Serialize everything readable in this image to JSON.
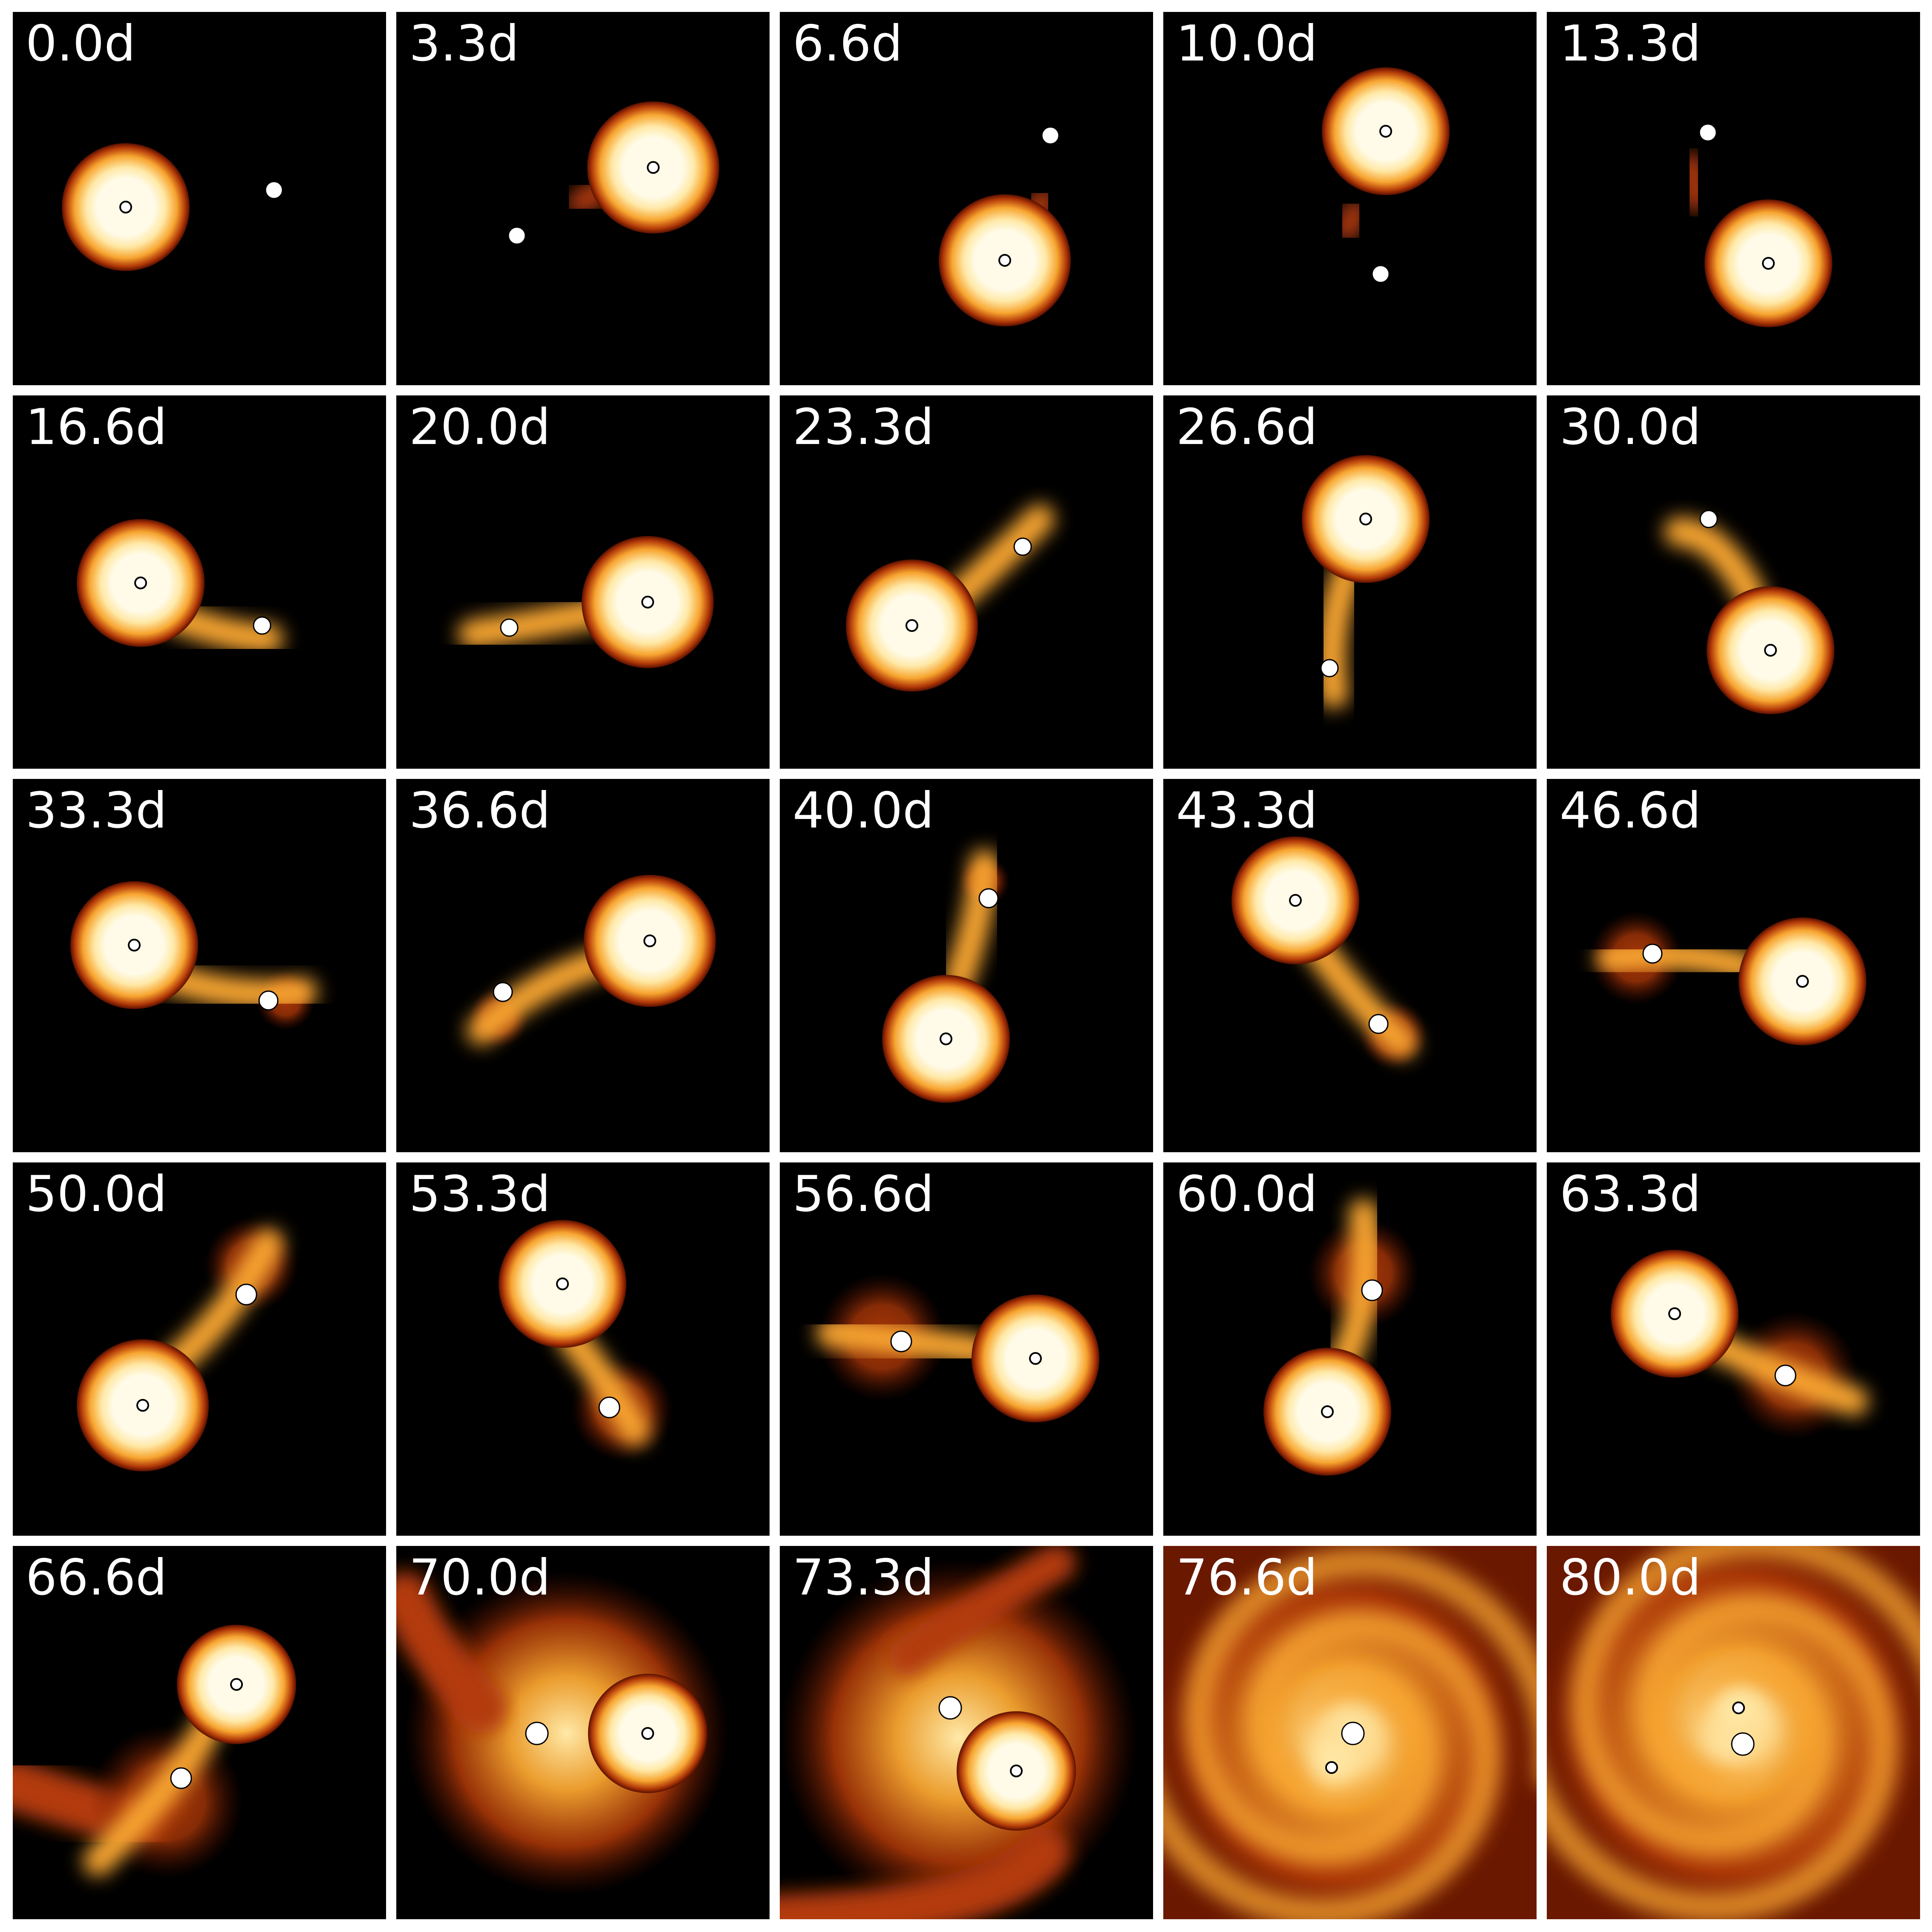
{
  "figure": {
    "panels": [
      {
        "label": "0.0d",
        "phase": "detached"
      },
      {
        "label": "3.3d",
        "phase": "detached"
      },
      {
        "label": "6.6d",
        "phase": "detached"
      },
      {
        "label": "10.0d",
        "phase": "detached"
      },
      {
        "label": "13.3d",
        "phase": "detached"
      },
      {
        "label": "16.6d",
        "phase": "mass-transfer"
      },
      {
        "label": "20.0d",
        "phase": "mass-transfer"
      },
      {
        "label": "23.3d",
        "phase": "mass-transfer"
      },
      {
        "label": "26.6d",
        "phase": "mass-transfer"
      },
      {
        "label": "30.0d",
        "phase": "mass-transfer"
      },
      {
        "label": "33.3d",
        "phase": "mass-transfer"
      },
      {
        "label": "36.6d",
        "phase": "mass-transfer"
      },
      {
        "label": "40.0d",
        "phase": "mass-transfer"
      },
      {
        "label": "43.3d",
        "phase": "mass-transfer"
      },
      {
        "label": "46.6d",
        "phase": "mass-transfer"
      },
      {
        "label": "50.0d",
        "phase": "mass-transfer"
      },
      {
        "label": "53.3d",
        "phase": "mass-transfer"
      },
      {
        "label": "56.6d",
        "phase": "mass-transfer"
      },
      {
        "label": "60.0d",
        "phase": "mass-transfer"
      },
      {
        "label": "63.3d",
        "phase": "mass-transfer"
      },
      {
        "label": "66.6d",
        "phase": "mass-transfer"
      },
      {
        "label": "70.0d",
        "phase": "common-envelope"
      },
      {
        "label": "73.3d",
        "phase": "common-envelope"
      },
      {
        "label": "76.6d",
        "phase": "spiral"
      },
      {
        "label": "80.0d",
        "phase": "spiral"
      }
    ],
    "colors": {
      "background": "#000000",
      "gap": "#ffffff",
      "core": "#fffbe8",
      "glow_inner": "#ffe9a8",
      "glow_mid": "#f7a530",
      "glow_outer": "#b33a08",
      "glow_edge": "#5a1000",
      "marker_fill": "#ffffff",
      "marker_stroke": "#000000"
    }
  }
}
